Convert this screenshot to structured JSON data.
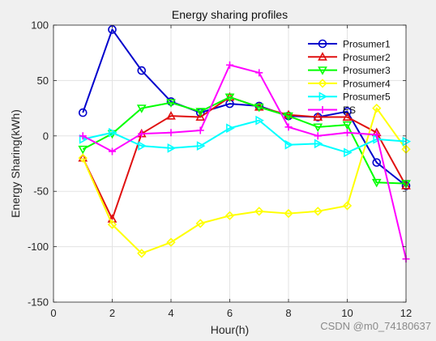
{
  "chart_data": {
    "type": "line",
    "title": "Energy sharing profiles",
    "xlabel": "Hour(h)",
    "ylabel": "Energy Sharing(kWh)",
    "xlim": [
      0,
      12
    ],
    "ylim": [
      -150,
      100
    ],
    "x_ticks": [
      0,
      2,
      4,
      6,
      8,
      10,
      12
    ],
    "y_ticks": [
      -150,
      -100,
      -50,
      0,
      50,
      100
    ],
    "grid": true,
    "legend_position": "top-right",
    "x": [
      1,
      2,
      3,
      4,
      5,
      6,
      7,
      8,
      9,
      10,
      11,
      12
    ],
    "series": [
      {
        "name": "Prosumer1",
        "color": "#0000cc",
        "marker": "circle",
        "values": [
          21,
          96,
          59,
          31,
          21,
          29,
          27,
          18,
          17,
          22,
          -24,
          -45
        ]
      },
      {
        "name": "Prosumer2",
        "color": "#e01010",
        "marker": "triangle-up",
        "values": [
          -20,
          -75,
          2,
          18,
          17,
          35,
          26,
          19,
          17,
          17,
          3,
          -45
        ]
      },
      {
        "name": "Prosumer3",
        "color": "#00ff00",
        "marker": "triangle-down",
        "values": [
          -12,
          2,
          25,
          30,
          22,
          35,
          26,
          18,
          8,
          10,
          -42,
          -43
        ]
      },
      {
        "name": "Prosumer4",
        "color": "#ffff00",
        "marker": "diamond",
        "values": [
          -20,
          -80,
          -106,
          -96,
          -79,
          -72,
          -68,
          -70,
          -68,
          -63,
          25,
          -12
        ]
      },
      {
        "name": "Prosumer5",
        "color": "#00ffff",
        "marker": "triangle-right",
        "values": [
          -3,
          3,
          -9,
          -11,
          -9,
          7,
          14,
          -8,
          -7,
          -15,
          -3,
          -5
        ]
      },
      {
        "name": "ES",
        "color": "#ff00ff",
        "marker": "plus",
        "values": [
          0,
          -14,
          2,
          3,
          5,
          64,
          57,
          8,
          0,
          3,
          1,
          -111
        ]
      }
    ]
  },
  "watermark": "CSDN @m0_74180637"
}
